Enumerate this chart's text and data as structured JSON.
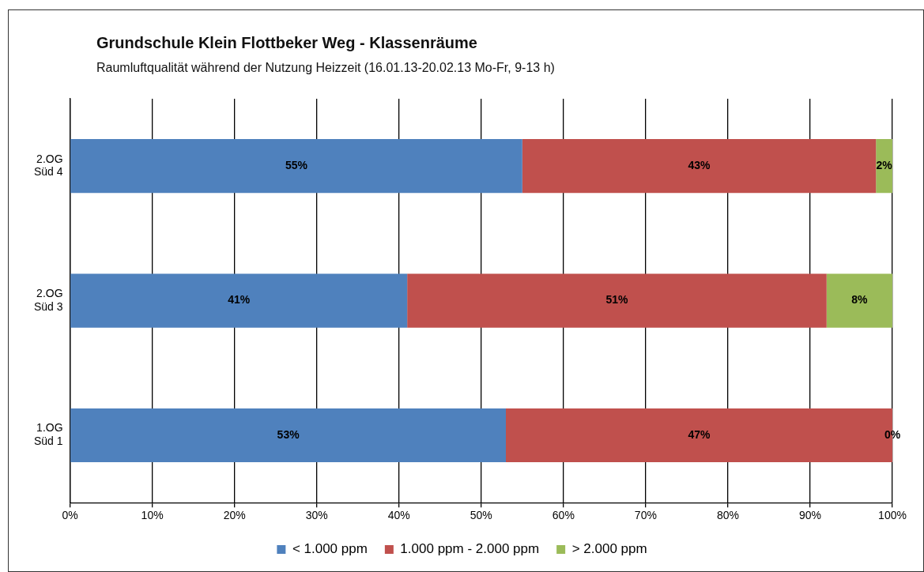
{
  "chart_data": {
    "type": "bar",
    "orientation": "horizontal",
    "stacked": true,
    "title": "Grundschule Klein Flottbeker Weg - Klassenräume",
    "subtitle": "Raumluftqualität während der Nutzung Heizzeit (16.01.13-20.02.13 Mo-Fr, 9-13 h)",
    "categories": [
      "2.OG\nSüd 4",
      "2.OG\nSüd 3",
      "1.OG\nSüd 1"
    ],
    "series": [
      {
        "name": "< 1.000 ppm",
        "color": "#4f81bd",
        "values": [
          55,
          41,
          53
        ],
        "value_labels": [
          "55%",
          "41%",
          "53%"
        ]
      },
      {
        "name": "1.000 ppm - 2.000 ppm",
        "color": "#c0504d",
        "values": [
          43,
          51,
          47
        ],
        "value_labels": [
          "43%",
          "51%",
          "47%"
        ]
      },
      {
        "name": "> 2.000 ppm",
        "color": "#9bbb59",
        "values": [
          2,
          8,
          0
        ],
        "value_labels": [
          "2%",
          "8%",
          "0%"
        ]
      }
    ],
    "xlim": [
      0,
      100
    ],
    "xticks": [
      {
        "value": 0,
        "label": "0%"
      },
      {
        "value": 10,
        "label": "10%"
      },
      {
        "value": 20,
        "label": "20%"
      },
      {
        "value": 30,
        "label": "30%"
      },
      {
        "value": 40,
        "label": "40%"
      },
      {
        "value": 50,
        "label": "50%"
      },
      {
        "value": 60,
        "label": "60%"
      },
      {
        "value": 70,
        "label": "70%"
      },
      {
        "value": 80,
        "label": "80%"
      },
      {
        "value": 90,
        "label": "90%"
      },
      {
        "value": 100,
        "label": "100%"
      }
    ],
    "grid": "x",
    "legend": "bottom"
  }
}
